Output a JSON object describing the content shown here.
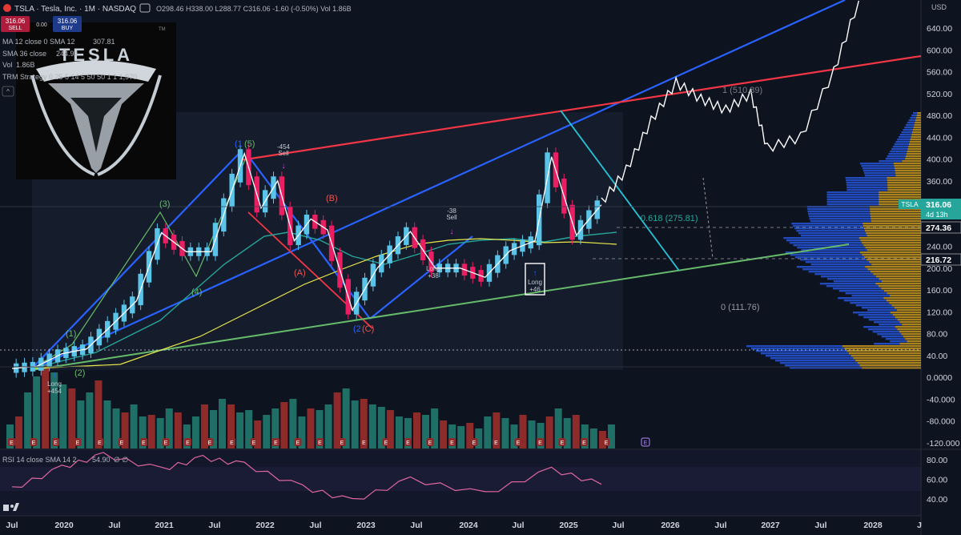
{
  "header": {
    "symbol_title": "TSLA · Tesla, Inc. · 1M · NASDAQ",
    "ohlc": "O298.46 H338.00 L288.77 C316.06 -1.60 (-0.50%) Vol 1.86B",
    "sell_price": "316.06",
    "sell_label": "SELL",
    "spread": "0.00",
    "buy_price": "316.06",
    "buy_label": "BUY",
    "currency": "USD"
  },
  "indicators": {
    "ma12": "MA 12 close 0 SMA 12",
    "ma12_value": "307.81",
    "sma36": "SMA 36 close",
    "sma36_value": "244.94",
    "vol": "Vol",
    "vol_value": "1.86B",
    "trm": "TRM Strategy 0 25 5 14 5 50 50 1 1 1,970",
    "rsi": "RSI 14 close SMA 14 2",
    "rsi_value": "54.90",
    "rsi_extra": "∅ ∅"
  },
  "logo": {
    "wordmark": "TESLA",
    "tm": "TM"
  },
  "price_labels": {
    "current": "316.06",
    "ticker": "TSLA",
    "countdown": "4d 13h",
    "level_274": "274.36",
    "level_216": "216.72"
  },
  "annotations": {
    "fib_618": "0.618 (275.81)",
    "fib_1": "1 (510.89)",
    "fib_0": "0 (111.76)",
    "sell_1": "-454",
    "sell_1_label": "Sell",
    "sell_2": "-38",
    "sell_2_label": "Sell",
    "long_1": "Long",
    "long_1_val": "+454",
    "long_2": "Long",
    "long_2_val": "+38",
    "long_3": "Long",
    "long_3_val": "+46",
    "wave_1a": "(1)",
    "wave_1b": "(1",
    "wave_2": "(2)",
    "wave_3": "(3)",
    "wave_4": "(4)",
    "wave_5": "(5)",
    "wave_A": "(A)",
    "wave_B": "(B)",
    "wave_2b": "(2",
    "wave_C": "(C)",
    "earn_marker": "E"
  },
  "colors": {
    "bg": "#0e1320",
    "up": "#5ac4e8",
    "down": "#e91e63",
    "blue_trend": "#2962ff",
    "red_trend": "#f23645",
    "green_trend": "#4caf50",
    "sma_yellow": "#e8e84a",
    "sma_teal": "#26a69a",
    "vol_up": "#1f6f67",
    "vol_down": "#8d2b2b",
    "rsi": "#e066a0"
  },
  "chart_data": [
    {
      "type": "line",
      "title": "TSLA · Tesla, Inc. · 1M · NASDAQ",
      "x_ticks": [
        "Jul",
        "2020",
        "Jul",
        "2021",
        "Jul",
        "2022",
        "Jul",
        "2023",
        "Jul",
        "2024",
        "Jul",
        "2025",
        "Jul",
        "2026",
        "Jul",
        "2027",
        "Jul",
        "2028",
        "J"
      ],
      "y_ticks": [
        "640.00",
        "600.00",
        "560.00",
        "520.00",
        "480.00",
        "440.00",
        "400.00",
        "360.00",
        "320.00",
        "280.00",
        "240.00",
        "200.00",
        "160.00",
        "120.00",
        "80.00",
        "40.00",
        "0.0000",
        "-40.000",
        "-80.000",
        "-120.000"
      ],
      "ylim": [
        -120,
        680
      ],
      "series": [
        {
          "name": "price",
          "x": [
            "2019-07",
            "2019-10",
            "2020-01",
            "2020-04",
            "2020-07",
            "2020-10",
            "2021-01",
            "2021-04",
            "2021-07",
            "2021-11",
            "2022-01",
            "2022-03",
            "2022-05",
            "2022-07",
            "2022-09",
            "2022-12",
            "2023-03",
            "2023-07",
            "2023-10",
            "2024-01",
            "2024-04",
            "2024-07",
            "2024-10",
            "2024-12",
            "2025-03",
            "2025-04",
            "2025-06"
          ],
          "values": [
            16,
            20,
            43,
            52,
            95,
            140,
            265,
            230,
            230,
            410,
            310,
            360,
            250,
            290,
            270,
            123,
            200,
            267,
            200,
            200,
            183,
            232,
            250,
            404,
            260,
            280,
            316
          ]
        },
        {
          "name": "projection",
          "x": [
            "2025-06",
            "2025-09",
            "2025-12",
            "2026-03",
            "2026-06",
            "2026-09",
            "2026-12",
            "2027-02",
            "2027-06",
            "2027-10",
            "2028-01"
          ],
          "values": [
            320,
            380,
            470,
            540,
            510,
            490,
            520,
            420,
            440,
            560,
            690
          ]
        }
      ],
      "levels": [
        {
          "label": "0.618 (275.81)",
          "value": 275.81
        },
        {
          "label": "1 (510.89)",
          "value": 510.89
        },
        {
          "label": "0 (111.76)",
          "value": 111.76
        },
        {
          "label": "274.36",
          "value": 274.36
        },
        {
          "label": "216.72",
          "value": 216.72
        }
      ]
    },
    {
      "type": "line",
      "title": "RSI 14 close SMA 14 2",
      "y_ticks": [
        "80.00",
        "60.00",
        "40.00"
      ],
      "ylim": [
        30,
        90
      ],
      "series": [
        {
          "name": "RSI",
          "x": [
            "2019-07",
            "2020-01",
            "2020-06",
            "2021-01",
            "2021-06",
            "2021-11",
            "2022-06",
            "2022-12",
            "2023-07",
            "2024-04",
            "2024-12",
            "2025-06"
          ],
          "values": [
            50,
            72,
            85,
            70,
            82,
            75,
            52,
            38,
            60,
            45,
            70,
            54.9
          ]
        }
      ]
    }
  ]
}
